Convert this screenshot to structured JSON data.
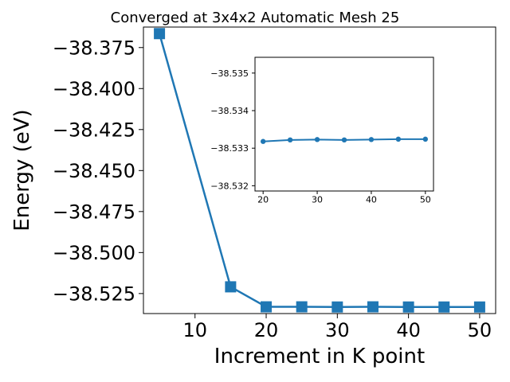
{
  "chart_data": [
    {
      "type": "line",
      "title": "Converged at 3x4x2 Automatic Mesh 25",
      "xlabel": "Increment in K point",
      "ylabel": "Energy (eV)",
      "x": [
        5,
        15,
        20,
        25,
        30,
        35,
        40,
        45,
        50
      ],
      "series": [
        {
          "values": [
            -38.3665,
            -38.5209,
            -38.5331,
            -38.5331,
            -38.5332,
            -38.5331,
            -38.5332,
            -38.5332,
            -38.5332
          ],
          "color": "#1f77b4",
          "marker": "square"
        }
      ],
      "xlim": [
        2.75,
        52.25
      ],
      "ylim": [
        -38.5372,
        -38.3625
      ],
      "xticks": [
        10,
        20,
        30,
        40,
        50
      ],
      "xtick_labels": [
        "10",
        "20",
        "30",
        "40",
        "50"
      ],
      "yticks": [
        -38.525,
        -38.5,
        -38.475,
        -38.45,
        -38.425,
        -38.4,
        -38.375
      ],
      "ytick_labels": [
        "−38.525",
        "−38.500",
        "−38.475",
        "−38.450",
        "−38.425",
        "−38.400",
        "−38.375"
      ],
      "grid": false
    },
    {
      "type": "line",
      "title": "",
      "xlabel": "",
      "ylabel": "",
      "x": [
        20,
        25,
        30,
        35,
        40,
        45,
        50
      ],
      "series": [
        {
          "values": [
            -38.53318,
            -38.53322,
            -38.53323,
            -38.53322,
            -38.53323,
            -38.53324,
            -38.53324
          ],
          "color": "#1f77b4",
          "marker": "circle"
        }
      ],
      "xlim": [
        18.5,
        51.5
      ],
      "ylim": [
        -38.53186,
        -38.53542
      ],
      "y_axis_inverted": true,
      "xticks": [
        20,
        30,
        40,
        50
      ],
      "xtick_labels": [
        "20",
        "30",
        "40",
        "50"
      ],
      "yticks": [
        -38.532,
        -38.533,
        -38.534,
        -38.535
      ],
      "ytick_labels": [
        "−38.532",
        "−38.533",
        "−38.534",
        "−38.535"
      ],
      "grid": false
    }
  ]
}
